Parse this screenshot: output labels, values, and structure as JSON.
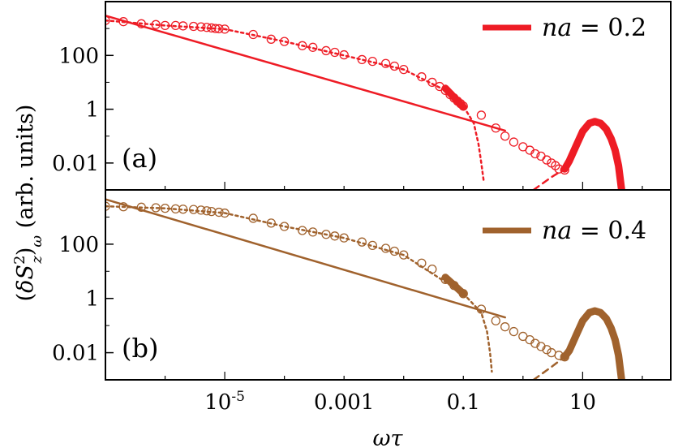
{
  "chart_data": [
    {
      "type": "line",
      "panel_label": "(a)",
      "legend": {
        "text": "na = 0.2",
        "placement": "top-right"
      },
      "color": "#ee1c25",
      "xscale": "log",
      "yscale": "log",
      "xlim": [
        1e-07,
        300
      ],
      "ylim": [
        0.001,
        10000
      ],
      "yticks": [
        {
          "value": 100,
          "label": "100"
        },
        {
          "value": 1,
          "label": "1"
        },
        {
          "value": 0.01,
          "label": "0.01"
        }
      ],
      "series": [
        {
          "style": "circles",
          "points": [
            [
              1e-07,
              2000
            ],
            [
              2e-07,
              1800
            ],
            [
              4e-07,
              1500
            ],
            [
              7e-07,
              1400
            ],
            [
              1e-06,
              1300
            ],
            [
              1.5e-06,
              1300
            ],
            [
              2e-06,
              1250
            ],
            [
              3e-06,
              1200
            ],
            [
              4e-06,
              1150
            ],
            [
              5e-06,
              1100
            ],
            [
              6e-06,
              1050
            ],
            [
              7e-06,
              1000
            ],
            [
              8e-06,
              980
            ],
            [
              1e-05,
              950
            ],
            [
              3e-05,
              600
            ],
            [
              6e-05,
              400
            ],
            [
              0.0001,
              330
            ],
            [
              0.0002,
              230
            ],
            [
              0.0003,
              200
            ],
            [
              0.0005,
              150
            ],
            [
              0.0007,
              130
            ],
            [
              0.001,
              105
            ],
            [
              0.002,
              70
            ],
            [
              0.003,
              60
            ],
            [
              0.005,
              50
            ],
            [
              0.007,
              40
            ],
            [
              0.01,
              30
            ],
            [
              0.02,
              16
            ],
            [
              0.03,
              10
            ],
            [
              0.04,
              7
            ],
            [
              0.05,
              5
            ],
            [
              0.06,
              3.5
            ],
            [
              0.07,
              2.6
            ],
            [
              0.08,
              2
            ],
            [
              0.09,
              1.6
            ],
            [
              0.1,
              1.3
            ],
            [
              0.2,
              0.6
            ],
            [
              0.35,
              0.2
            ],
            [
              0.5,
              0.1
            ],
            [
              0.7,
              0.06
            ],
            [
              1,
              0.04
            ],
            [
              1.3,
              0.03
            ],
            [
              1.6,
              0.022
            ],
            [
              2,
              0.018
            ],
            [
              2.5,
              0.013
            ],
            [
              3,
              0.01
            ],
            [
              3.5,
              0.008
            ],
            [
              4,
              0.006
            ],
            [
              5,
              0.0055
            ]
          ]
        },
        {
          "style": "dotted",
          "points": [
            [
              1e-07,
              2000
            ],
            [
              1e-06,
              1300
            ],
            [
              1e-05,
              950
            ],
            [
              0.0001,
              330
            ],
            [
              0.001,
              100
            ],
            [
              0.01,
              30
            ],
            [
              0.05,
              5
            ],
            [
              0.1,
              1.3
            ],
            [
              0.15,
              0.3
            ],
            [
              0.18,
              0.05
            ],
            [
              0.2,
              0.01
            ],
            [
              0.22,
              0.002
            ]
          ]
        },
        {
          "style": "solid",
          "points": [
            [
              1e-07,
              3000
            ],
            [
              0.5,
              0.16
            ]
          ]
        },
        {
          "style": "dashed",
          "points": [
            [
              1.5,
              0.001
            ],
            [
              3,
              0.003
            ],
            [
              5,
              0.006
            ]
          ]
        },
        {
          "style": "thick",
          "points": [
            [
              5,
              0.006
            ],
            [
              6,
              0.012
            ],
            [
              8,
              0.05
            ],
            [
              10,
              0.15
            ],
            [
              13,
              0.3
            ],
            [
              16,
              0.35
            ],
            [
              20,
              0.3
            ],
            [
              25,
              0.18
            ],
            [
              30,
              0.08
            ],
            [
              35,
              0.03
            ],
            [
              40,
              0.008
            ],
            [
              45,
              0.001
            ]
          ]
        },
        {
          "style": "thick",
          "points": [
            [
              0.05,
              6
            ],
            [
              0.1,
              1.2
            ]
          ]
        }
      ]
    },
    {
      "type": "line",
      "panel_label": "(b)",
      "legend": {
        "text": "na = 0.4",
        "placement": "top-right"
      },
      "color": "#a0622d",
      "xscale": "log",
      "yscale": "log",
      "xlim": [
        1e-07,
        300
      ],
      "ylim": [
        0.001,
        10000
      ],
      "yticks": [
        {
          "value": 100,
          "label": "100"
        },
        {
          "value": 1,
          "label": "1"
        },
        {
          "value": 0.01,
          "label": "0.01"
        }
      ],
      "xticks": [
        {
          "value": 1e-05,
          "label": "10",
          "sup": "-5"
        },
        {
          "value": 0.001,
          "label": "0.001"
        },
        {
          "value": 0.1,
          "label": "0.1"
        },
        {
          "value": 10,
          "label": "10"
        }
      ],
      "series": [
        {
          "style": "circles",
          "points": [
            [
              1e-07,
              2500
            ],
            [
              2e-07,
              2400
            ],
            [
              4e-07,
              2300
            ],
            [
              7e-07,
              2200
            ],
            [
              1e-06,
              2100
            ],
            [
              1.5e-06,
              2000
            ],
            [
              2e-06,
              1950
            ],
            [
              3e-06,
              1900
            ],
            [
              4e-06,
              1800
            ],
            [
              5e-06,
              1700
            ],
            [
              6e-06,
              1600
            ],
            [
              8e-06,
              1500
            ],
            [
              1e-05,
              1400
            ],
            [
              3e-05,
              900
            ],
            [
              6e-05,
              600
            ],
            [
              0.0001,
              450
            ],
            [
              0.0002,
              320
            ],
            [
              0.0003,
              280
            ],
            [
              0.0005,
              230
            ],
            [
              0.0007,
              200
            ],
            [
              0.001,
              170
            ],
            [
              0.002,
              120
            ],
            [
              0.003,
              90
            ],
            [
              0.005,
              70
            ],
            [
              0.007,
              55
            ],
            [
              0.01,
              40
            ],
            [
              0.02,
              20
            ],
            [
              0.03,
              12
            ],
            [
              0.05,
              5
            ],
            [
              0.07,
              3
            ],
            [
              0.1,
              1.5
            ],
            [
              0.2,
              0.4
            ],
            [
              0.35,
              0.15
            ],
            [
              0.5,
              0.09
            ],
            [
              0.7,
              0.06
            ],
            [
              1,
              0.04
            ],
            [
              1.3,
              0.03
            ],
            [
              1.6,
              0.022
            ],
            [
              2,
              0.017
            ],
            [
              2.5,
              0.013
            ],
            [
              3,
              0.01
            ],
            [
              4,
              0.008
            ],
            [
              5,
              0.007
            ]
          ]
        },
        {
          "style": "dotted",
          "points": [
            [
              1e-07,
              2500
            ],
            [
              1e-06,
              2100
            ],
            [
              1e-05,
              1400
            ],
            [
              0.0001,
              450
            ],
            [
              0.001,
              170
            ],
            [
              0.01,
              40
            ],
            [
              0.1,
              1.5
            ],
            [
              0.2,
              0.3
            ],
            [
              0.25,
              0.06
            ],
            [
              0.28,
              0.01
            ],
            [
              0.3,
              0.002
            ]
          ]
        },
        {
          "style": "solid",
          "points": [
            [
              1e-07,
              4500
            ],
            [
              0.5,
              0.2
            ]
          ]
        },
        {
          "style": "dashed",
          "points": [
            [
              1.5,
              0.001
            ],
            [
              3,
              0.003
            ],
            [
              5,
              0.007
            ]
          ]
        },
        {
          "style": "thick",
          "points": [
            [
              5,
              0.007
            ],
            [
              6,
              0.012
            ],
            [
              8,
              0.05
            ],
            [
              10,
              0.15
            ],
            [
              13,
              0.3
            ],
            [
              16,
              0.35
            ],
            [
              20,
              0.3
            ],
            [
              25,
              0.18
            ],
            [
              30,
              0.08
            ],
            [
              35,
              0.03
            ],
            [
              40,
              0.008
            ],
            [
              45,
              0.001
            ]
          ]
        },
        {
          "style": "thick",
          "points": [
            [
              0.05,
              6
            ],
            [
              0.1,
              1.5
            ]
          ]
        }
      ]
    }
  ],
  "ylabel": "(δS²_z)_ω (arb. units)",
  "xlabel": "ωτ"
}
